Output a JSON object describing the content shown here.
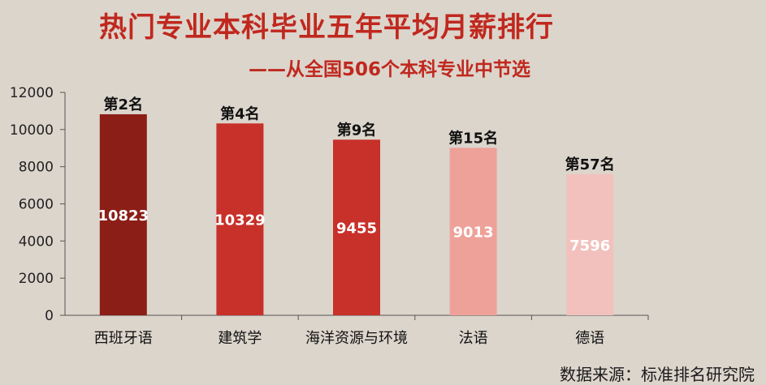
{
  "title": "热门专业本科毕业五年平均月薪排行",
  "subtitle": "——从全国506个本科专业中节选",
  "source": "数据来源：标准排名研究院",
  "chart_data": {
    "type": "bar",
    "categories": [
      "西班牙语",
      "建筑学",
      "海洋资源与环境",
      "法语",
      "德语"
    ],
    "values": [
      10823,
      10329,
      9455,
      9013,
      7596
    ],
    "ranks": [
      "第2名",
      "第4名",
      "第9名",
      "第15名",
      "第57名"
    ],
    "bar_colors": [
      "#8b1e17",
      "#c8302a",
      "#c8302a",
      "#eea199",
      "#f2c1bd"
    ],
    "ylim": [
      0,
      12000
    ],
    "yticks": [
      0,
      2000,
      4000,
      6000,
      8000,
      10000,
      12000
    ],
    "grid": false,
    "legend": "none"
  }
}
